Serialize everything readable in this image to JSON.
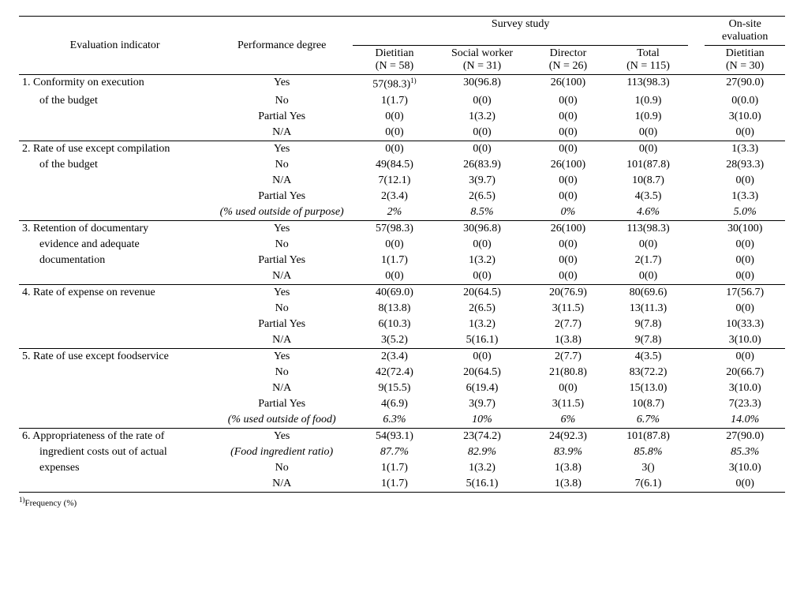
{
  "colHeaders": {
    "indicator": "Evaluation indicator",
    "degree": "Performance degree",
    "surveyGroup": "Survey study",
    "onsiteGroup": "On-site evaluation",
    "cols": [
      {
        "role": "Dietitian",
        "n": "(N = 58)"
      },
      {
        "role": "Social worker",
        "n": "(N = 31)"
      },
      {
        "role": "Director",
        "n": "(N = 26)"
      },
      {
        "role": "Total",
        "n": "(N = 115)"
      },
      {
        "role": "Dietitian",
        "n": "(N = 30)"
      }
    ]
  },
  "sections": [
    {
      "indicator": [
        "1. Conformity on execution",
        "of the budget"
      ],
      "rows": [
        {
          "label": "Yes",
          "vals": [
            "57(98.3)",
            "30(96.8)",
            "26(100)",
            "113(98.3)",
            "27(90.0)"
          ],
          "supOnFirst": "1)"
        },
        {
          "label": "No",
          "vals": [
            "1(1.7)",
            "0(0)",
            "0(0)",
            "1(0.9)",
            "0(0.0)"
          ]
        },
        {
          "label": "Partial Yes",
          "vals": [
            "0(0)",
            "1(3.2)",
            "0(0)",
            "1(0.9)",
            "3(10.0)"
          ]
        },
        {
          "label": "N/A",
          "vals": [
            "0(0)",
            "0(0)",
            "0(0)",
            "0(0)",
            "0(0)"
          ]
        }
      ]
    },
    {
      "indicator": [
        "2. Rate of use except compilation",
        "of the budget"
      ],
      "rows": [
        {
          "label": "Yes",
          "vals": [
            "0(0)",
            "0(0)",
            "0(0)",
            "0(0)",
            "1(3.3)"
          ]
        },
        {
          "label": "No",
          "vals": [
            "49(84.5)",
            "26(83.9)",
            "26(100)",
            "101(87.8)",
            "28(93.3)"
          ]
        },
        {
          "label": "N/A",
          "vals": [
            "7(12.1)",
            "3(9.7)",
            "0(0)",
            "10(8.7)",
            "0(0)"
          ]
        },
        {
          "label": "Partial Yes",
          "vals": [
            "2(3.4)",
            "2(6.5)",
            "0(0)",
            "4(3.5)",
            "1(3.3)"
          ]
        },
        {
          "label": "(% used outside of purpose)",
          "italic": true,
          "vals": [
            "2%",
            "8.5%",
            "0%",
            "4.6%",
            "5.0%"
          ]
        }
      ]
    },
    {
      "indicator": [
        "3. Retention of documentary",
        "evidence and adequate",
        "documentation"
      ],
      "rows": [
        {
          "label": "Yes",
          "vals": [
            "57(98.3)",
            "30(96.8)",
            "26(100)",
            "113(98.3)",
            "30(100)"
          ]
        },
        {
          "label": "No",
          "vals": [
            "0(0)",
            "0(0)",
            "0(0)",
            "0(0)",
            "0(0)"
          ]
        },
        {
          "label": "Partial Yes",
          "vals": [
            "1(1.7)",
            "1(3.2)",
            "0(0)",
            "2(1.7)",
            "0(0)"
          ]
        },
        {
          "label": "N/A",
          "vals": [
            "0(0)",
            "0(0)",
            "0(0)",
            "0(0)",
            "0(0)"
          ]
        }
      ]
    },
    {
      "indicator": [
        "4. Rate of expense on revenue"
      ],
      "rows": [
        {
          "label": "Yes",
          "vals": [
            "40(69.0)",
            "20(64.5)",
            "20(76.9)",
            "80(69.6)",
            "17(56.7)"
          ]
        },
        {
          "label": "No",
          "vals": [
            "8(13.8)",
            "2(6.5)",
            "3(11.5)",
            "13(11.3)",
            "0(0)"
          ]
        },
        {
          "label": "Partial Yes",
          "vals": [
            "6(10.3)",
            "1(3.2)",
            "2(7.7)",
            "9(7.8)",
            "10(33.3)"
          ]
        },
        {
          "label": "N/A",
          "vals": [
            "3(5.2)",
            "5(16.1)",
            "1(3.8)",
            "9(7.8)",
            "3(10.0)"
          ]
        }
      ]
    },
    {
      "indicator": [
        "5. Rate of use except foodservice"
      ],
      "rows": [
        {
          "label": "Yes",
          "vals": [
            "2(3.4)",
            "0(0)",
            "2(7.7)",
            "4(3.5)",
            "0(0)"
          ]
        },
        {
          "label": "No",
          "vals": [
            "42(72.4)",
            "20(64.5)",
            "21(80.8)",
            "83(72.2)",
            "20(66.7)"
          ]
        },
        {
          "label": "N/A",
          "vals": [
            "9(15.5)",
            "6(19.4)",
            "0(0)",
            "15(13.0)",
            "3(10.0)"
          ]
        },
        {
          "label": "Partial Yes",
          "vals": [
            "4(6.9)",
            "3(9.7)",
            "3(11.5)",
            "10(8.7)",
            "7(23.3)"
          ]
        },
        {
          "label": "(% used outside of food)",
          "italic": true,
          "vals": [
            "6.3%",
            "10%",
            "6%",
            "6.7%",
            "14.0%"
          ]
        }
      ]
    },
    {
      "indicator": [
        "6. Appropriateness of the rate of",
        "ingredient costs out of actual",
        "expenses"
      ],
      "rows": [
        {
          "label": "Yes",
          "vals": [
            "54(93.1)",
            "23(74.2)",
            "24(92.3)",
            "101(87.8)",
            "27(90.0)"
          ]
        },
        {
          "label": "(Food ingredient ratio)",
          "italic": true,
          "vals": [
            "87.7%",
            "82.9%",
            "83.9%",
            "85.8%",
            "85.3%"
          ]
        },
        {
          "label": "No",
          "vals": [
            "1(1.7)",
            "1(3.2)",
            "1(3.8)",
            "3()",
            "3(10.0)"
          ]
        },
        {
          "label": "N/A",
          "vals": [
            "1(1.7)",
            "5(16.1)",
            "1(3.8)",
            "7(6.1)",
            "0(0)"
          ]
        }
      ]
    }
  ],
  "footnote": {
    "sup": "1)",
    "text": "Frequency (%)"
  }
}
